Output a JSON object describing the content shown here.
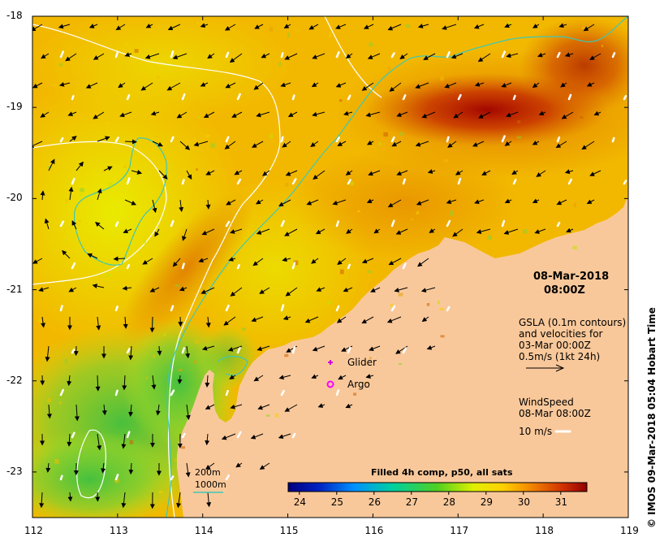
{
  "map": {
    "lon_range": [
      112,
      119
    ],
    "lat_range": [
      -23.5,
      -18
    ],
    "x_ticks": [
      "112",
      "113",
      "114",
      "115",
      "116",
      "117",
      "118",
      "119"
    ],
    "y_ticks": [
      "-18",
      "-19",
      "-20",
      "-21",
      "-22",
      "-23"
    ]
  },
  "timestamp": {
    "date": "08-Mar-2018",
    "time": "08:00Z"
  },
  "gsla": {
    "title": "GSLA (0.1m contours)",
    "line2": "and velocities for",
    "line3": "03-Mar 00:00Z",
    "scale": "0.5m/s (1kt 24h)"
  },
  "wind": {
    "title": "WindSpeed",
    "time": "08-Mar 08:00Z",
    "scale": "10 m/s"
  },
  "legend": {
    "glider": "Glider",
    "argo": "Argo",
    "isobath_200": "200m",
    "isobath_1000": "1000m"
  },
  "colorbar": {
    "title": "Filled 4h comp, p50, all sats",
    "ticks": [
      "24",
      "25",
      "26",
      "27",
      "28",
      "29",
      "30",
      "31"
    ],
    "range": [
      23.7,
      31.7
    ]
  },
  "credit": "© IMOS 09-Mar-2018 05:04 Hobart Time",
  "colors": {
    "land": "#f9c89a",
    "contour": "#ffffff",
    "isobath_1000": "#3fc8b4",
    "glider": "#d400d4",
    "argo": "#ff00ff"
  }
}
